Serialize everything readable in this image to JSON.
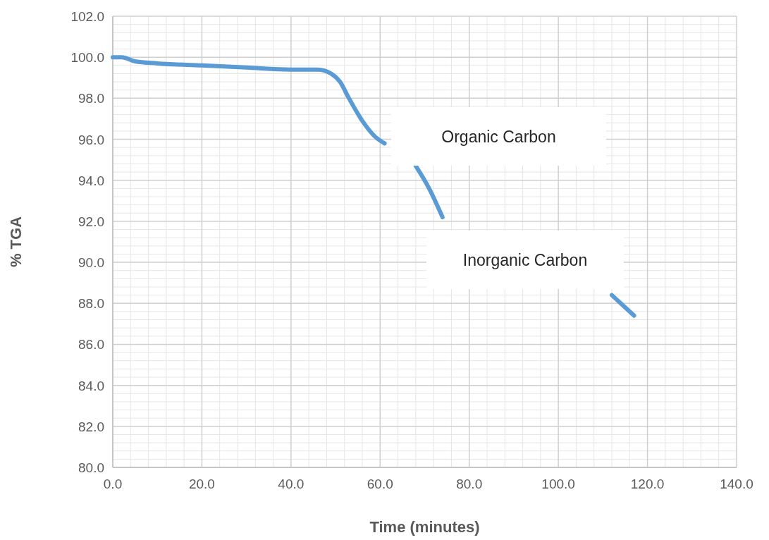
{
  "chart_data": {
    "type": "line",
    "xlabel": "Time (minutes)",
    "ylabel": "% TGA",
    "x": [
      0,
      2,
      5,
      10,
      20,
      30,
      40,
      46,
      49,
      51,
      53,
      56,
      59,
      61,
      64,
      68,
      71,
      74,
      76,
      90,
      112,
      114,
      117
    ],
    "series": [
      {
        "color": "#5b9bd5",
        "values": [
          100.0,
          100.0,
          99.8,
          99.7,
          99.6,
          99.5,
          99.4,
          99.4,
          99.2,
          98.8,
          98.0,
          96.9,
          96.1,
          95.8,
          null,
          94.7,
          93.6,
          92.2,
          null,
          null,
          88.4,
          88.0,
          87.4
        ]
      }
    ],
    "xlim": [
      0,
      140
    ],
    "xticks": [
      {
        "value": 0,
        "label": "0.0"
      },
      {
        "value": 20,
        "label": "20.0"
      },
      {
        "value": 40,
        "label": "40.0"
      },
      {
        "value": 60,
        "label": "60.0"
      },
      {
        "value": 80,
        "label": "80.0"
      },
      {
        "value": 100,
        "label": "100.0"
      },
      {
        "value": 120,
        "label": "120.0"
      },
      {
        "value": 140,
        "label": "140.0"
      }
    ],
    "ylim": [
      80,
      102
    ],
    "yticks": [
      {
        "value": 80,
        "label": "80.0"
      },
      {
        "value": 82,
        "label": "82.0"
      },
      {
        "value": 84,
        "label": "84.0"
      },
      {
        "value": 86,
        "label": "86.0"
      },
      {
        "value": 88,
        "label": "88.0"
      },
      {
        "value": 90,
        "label": "90.0"
      },
      {
        "value": 92,
        "label": "92.0"
      },
      {
        "value": 94,
        "label": "94.0"
      },
      {
        "value": 96,
        "label": "96.0"
      },
      {
        "value": 98,
        "label": "98.0"
      },
      {
        "value": 100,
        "label": "100.0"
      },
      {
        "value": 102,
        "label": "102.0"
      }
    ],
    "grid": true,
    "line_style": "solid",
    "annotations": [
      "Organic Carbon",
      "Inorganic Carbon"
    ]
  }
}
